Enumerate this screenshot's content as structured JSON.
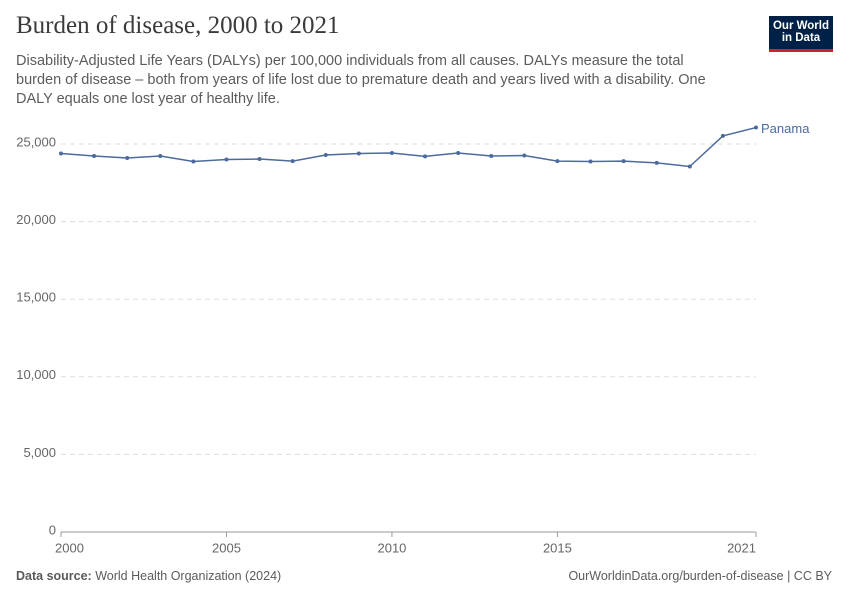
{
  "chart_data": {
    "type": "line",
    "title": "Burden of disease, 2000 to 2021",
    "subtitle": "Disability-Adjusted Life Years (DALYs) per 100,000 individuals from all causes. DALYs measure the total burden of disease – both from years of life lost due to premature death and years lived with a disability. One DALY equals one lost year of healthy life.",
    "x": [
      2000,
      2001,
      2002,
      2003,
      2004,
      2005,
      2006,
      2007,
      2008,
      2009,
      2010,
      2011,
      2012,
      2013,
      2014,
      2015,
      2016,
      2017,
      2018,
      2019,
      2020,
      2021
    ],
    "series": [
      {
        "name": "Panama",
        "color": "#4c6a9c",
        "values": [
          24390,
          24230,
          24100,
          24230,
          23870,
          24000,
          24030,
          23900,
          24290,
          24390,
          24420,
          24200,
          24420,
          24230,
          24260,
          23900,
          23870,
          23900,
          23780,
          23550,
          25520,
          26060
        ]
      }
    ],
    "xlim": [
      2000,
      2021
    ],
    "xticks": [
      2000,
      2005,
      2010,
      2015,
      2021
    ],
    "ylim": [
      0,
      25000
    ],
    "yticks": [
      0,
      {
        "value": 5000,
        "label": "5,000"
      },
      {
        "value": 10000,
        "label": "10,000"
      },
      {
        "value": 15000,
        "label": "15,000"
      },
      {
        "value": 20000,
        "label": "20,000"
      },
      {
        "value": 25000,
        "label": "25,000"
      }
    ],
    "grid": true
  },
  "logo": {
    "line1": "Our World",
    "line2": "in Data"
  },
  "footer": {
    "source_label": "Data source:",
    "source": "World Health Organization (2024)",
    "url": "OurWorldinData.org/burden-of-disease | CC BY"
  }
}
